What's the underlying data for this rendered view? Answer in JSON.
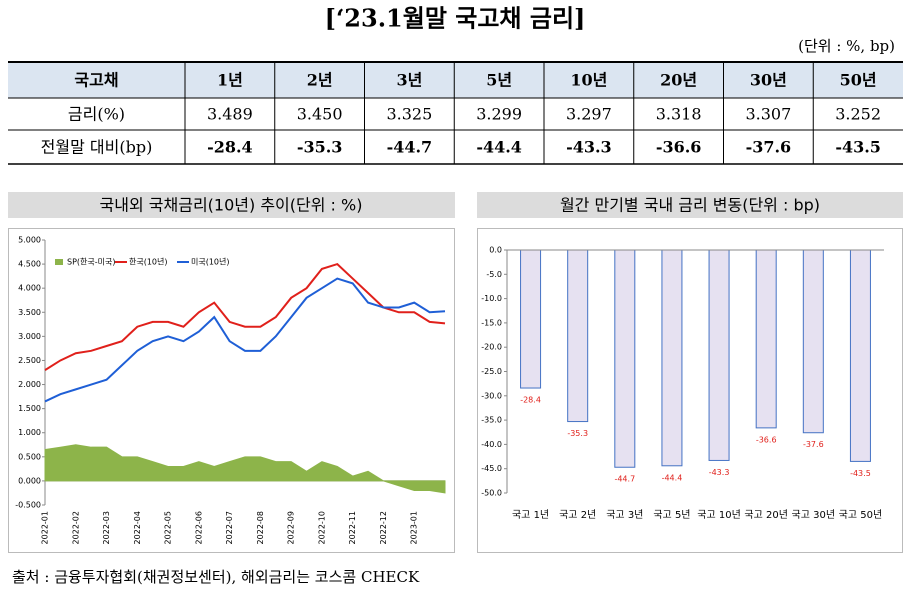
{
  "title": "[‘23.1월말 국고채 금리]",
  "unit": "(단위 : %, bp)",
  "table": {
    "header": [
      "국고채",
      "1년",
      "2년",
      "3년",
      "5년",
      "10년",
      "20년",
      "30년",
      "50년"
    ],
    "rows": [
      [
        "금리(%)",
        "3.489",
        "3.450",
        "3.325",
        "3.299",
        "3.297",
        "3.318",
        "3.307",
        "3.252"
      ],
      [
        "전월말 대비(bp)",
        "-28.4",
        "-35.3",
        "-44.7",
        "-44.4",
        "-43.3",
        "-36.6",
        "-37.6",
        "-43.5"
      ]
    ]
  },
  "chart_data": [
    {
      "type": "line",
      "title": "국내외 국채금리(10년) 추이(단위 : %)",
      "categories": [
        "2022-01",
        null,
        "2022-02",
        null,
        "2022-03",
        null,
        "2022-04",
        null,
        "2022-05",
        null,
        "2022-06",
        null,
        "2022-07",
        null,
        "2022-08",
        null,
        "2022-09",
        null,
        "2022-10",
        null,
        "2022-11",
        null,
        "2022-12",
        null,
        "2023-01",
        null,
        null
      ],
      "series": [
        {
          "name": "SP(한국-미국)",
          "color": "#8db44a",
          "area": true,
          "values": [
            0.65,
            0.7,
            0.75,
            0.7,
            0.7,
            0.5,
            0.5,
            0.4,
            0.3,
            0.3,
            0.4,
            0.3,
            0.4,
            0.5,
            0.5,
            0.4,
            0.4,
            0.2,
            0.4,
            0.3,
            0.1,
            0.2,
            0,
            -0.1,
            -0.2,
            -0.2,
            -0.25
          ]
        },
        {
          "name": "한국(10년)",
          "color": "#e0201b",
          "values": [
            2.3,
            2.5,
            2.65,
            2.7,
            2.8,
            2.9,
            3.2,
            3.3,
            3.3,
            3.2,
            3.5,
            3.7,
            3.3,
            3.2,
            3.2,
            3.4,
            3.8,
            4.0,
            4.4,
            4.5,
            4.2,
            3.9,
            3.6,
            3.5,
            3.5,
            3.3,
            3.27
          ]
        },
        {
          "name": "미국(10년)",
          "color": "#1f5fd6",
          "values": [
            1.65,
            1.8,
            1.9,
            2.0,
            2.1,
            2.4,
            2.7,
            2.9,
            3.0,
            2.9,
            3.1,
            3.4,
            2.9,
            2.7,
            2.7,
            3.0,
            3.4,
            3.8,
            4.0,
            4.2,
            4.1,
            3.7,
            3.6,
            3.6,
            3.7,
            3.5,
            3.52
          ]
        }
      ],
      "ylim": [
        -0.5,
        5.0
      ],
      "yticks": [
        {
          "value": 5.0,
          "label": "5.000"
        },
        {
          "value": 4.5,
          "label": "4.500"
        },
        {
          "value": 4.0,
          "label": "4.000"
        },
        {
          "value": 3.5,
          "label": "3.500"
        },
        {
          "value": 3.0,
          "label": "3.000"
        },
        {
          "value": 2.5,
          "label": "2.500"
        },
        {
          "value": 2.0,
          "label": "2.000"
        },
        {
          "value": 1.5,
          "label": "1.500"
        },
        {
          "value": 1.0,
          "label": "1.000"
        },
        {
          "value": 0.5,
          "label": "0.500"
        },
        {
          "value": 0,
          "label": "0.000"
        },
        {
          "value": -0.5,
          "label": "-0.500"
        }
      ],
      "legend": "top-left"
    },
    {
      "type": "bar",
      "title": "월간 만기별 국내 금리 변동(단위 : bp)",
      "categories": [
        "국고 1년",
        "국고 2년",
        "국고 3년",
        "국고 5년",
        "국고 10년",
        "국고 20년",
        "국고 30년",
        "국고 50년"
      ],
      "values": [
        -28.4,
        -35.3,
        -44.7,
        -44.4,
        -43.3,
        -36.6,
        -37.6,
        -43.5
      ],
      "color": "#e6e1f1",
      "edge": "#4472c4",
      "label_color": "#e0201b",
      "ylim": [
        -50,
        0
      ],
      "yticks": [
        {
          "value": 0,
          "label": "0.0"
        },
        {
          "value": -5,
          "label": "-5.0"
        },
        {
          "value": -10,
          "label": "-10.0"
        },
        {
          "value": -15,
          "label": "-15.0"
        },
        {
          "value": -20,
          "label": "-20.0"
        },
        {
          "value": -25,
          "label": "-25.0"
        },
        {
          "value": -30,
          "label": "-30.0"
        },
        {
          "value": -35,
          "label": "-35.0"
        },
        {
          "value": -40,
          "label": "-40.0"
        },
        {
          "value": -45,
          "label": "-45.0"
        },
        {
          "value": -50,
          "label": "-50.0"
        }
      ]
    }
  ],
  "source": "출처 : 금융투자협회(채권정보센터), 해외금리는 코스콤 CHECK"
}
